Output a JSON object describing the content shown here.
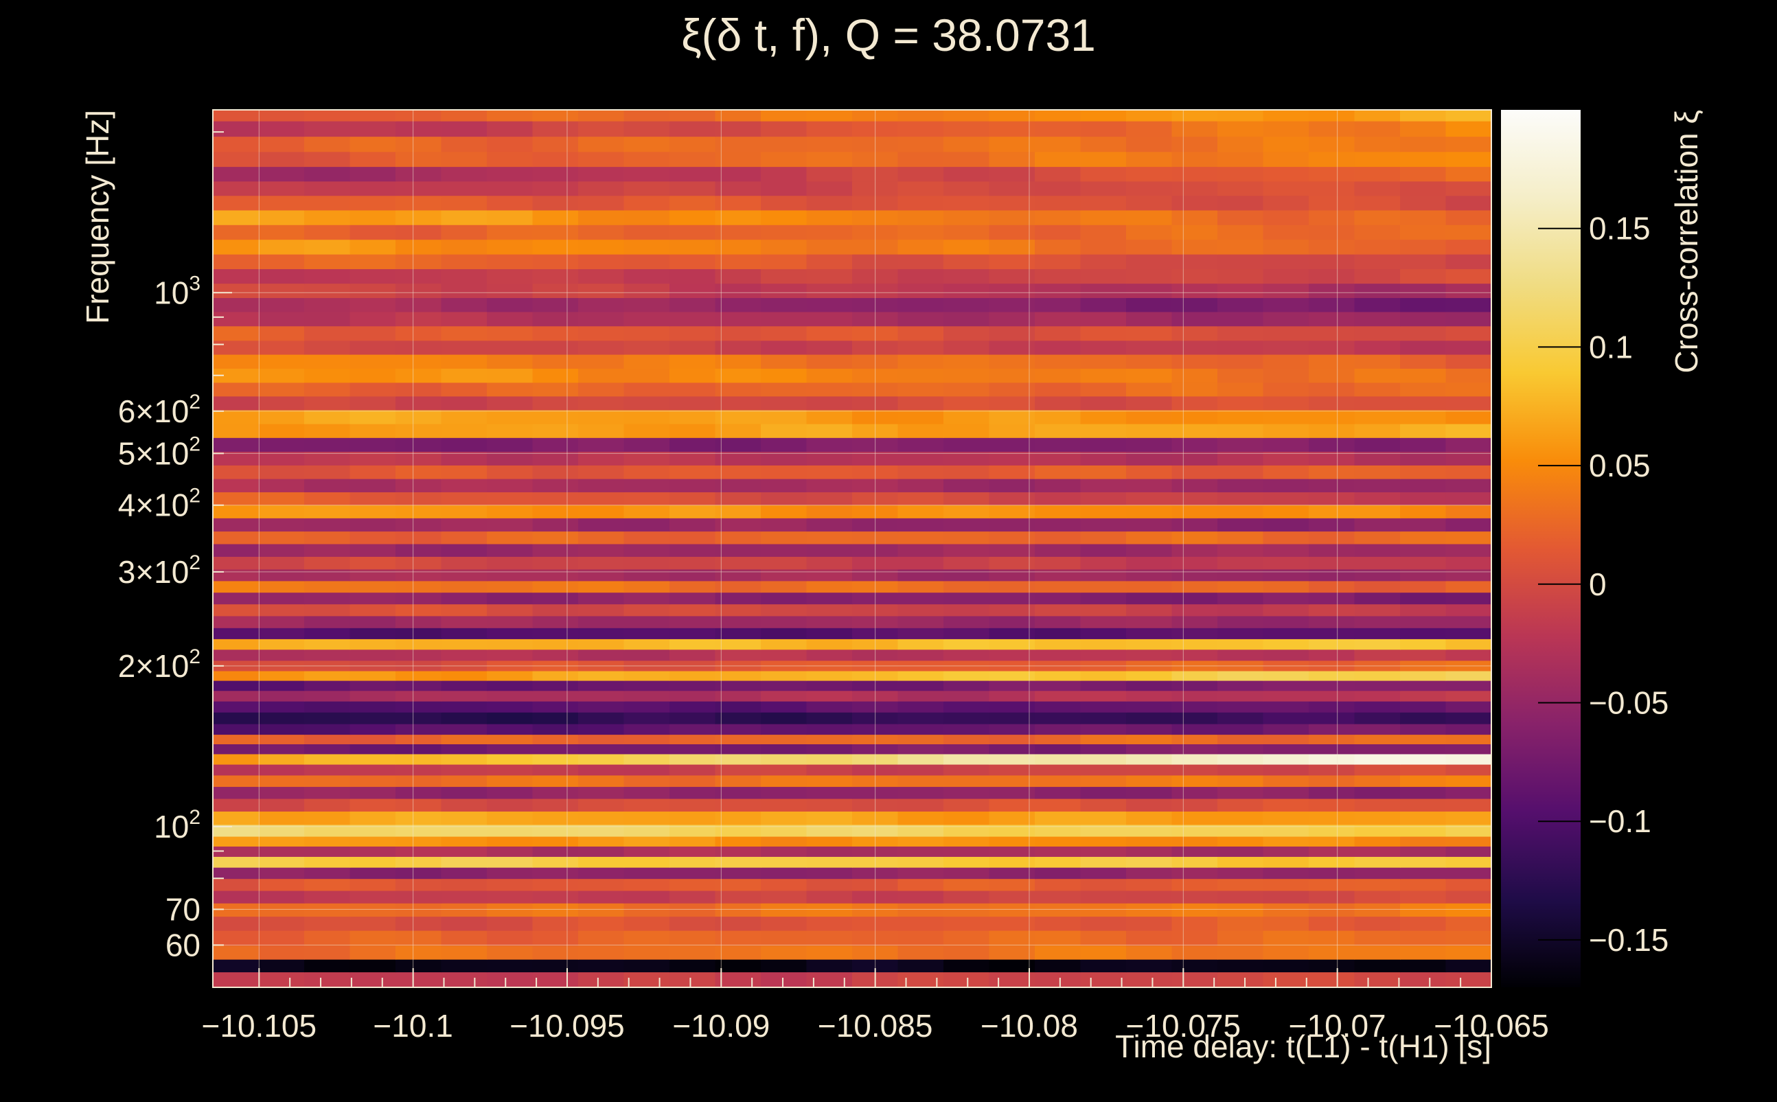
{
  "chart_data": {
    "type": "heatmap",
    "title": "ξ(δ t, f), Q = 38.0731",
    "xlabel": "Time delay: t(L1) - t(H1) [s]",
    "ylabel": "Frequency [Hz]",
    "colorbar_label": "Cross-correlation ξ",
    "x_range": [
      -10.1065,
      -10.065
    ],
    "y_range": [
      50,
      2200
    ],
    "y_scale": "log",
    "color_range": [
      -0.17,
      0.2
    ],
    "colormap": "inferno",
    "grid": true,
    "x_ticks": [
      {
        "value": -10.105,
        "label": "−10.105"
      },
      {
        "value": -10.1,
        "label": "−10.1"
      },
      {
        "value": -10.095,
        "label": "−10.095"
      },
      {
        "value": -10.09,
        "label": "−10.09"
      },
      {
        "value": -10.085,
        "label": "−10.085"
      },
      {
        "value": -10.08,
        "label": "−10.08"
      },
      {
        "value": -10.075,
        "label": "−10.075"
      },
      {
        "value": -10.07,
        "label": "−10.07"
      },
      {
        "value": -10.065,
        "label": "−10.065"
      }
    ],
    "y_ticks": [
      {
        "value": 60,
        "label": "60"
      },
      {
        "value": 70,
        "label": "70"
      },
      {
        "value": 100,
        "base": "10",
        "exp": "2"
      },
      {
        "value": 200,
        "base": "2×10",
        "exp": "2"
      },
      {
        "value": 300,
        "base": "3×10",
        "exp": "2"
      },
      {
        "value": 400,
        "base": "4×10",
        "exp": "2"
      },
      {
        "value": 500,
        "base": "5×10",
        "exp": "2"
      },
      {
        "value": 600,
        "base": "6×10",
        "exp": "2"
      },
      {
        "value": 1000,
        "base": "10",
        "exp": "3"
      }
    ],
    "colorbar_ticks": [
      {
        "value": 0.15,
        "label": "0.15"
      },
      {
        "value": 0.1,
        "label": "0.1"
      },
      {
        "value": 0.05,
        "label": "0.05"
      },
      {
        "value": 0,
        "label": "0"
      },
      {
        "value": -0.05,
        "label": "−0.05"
      },
      {
        "value": -0.1,
        "label": "−0.1"
      },
      {
        "value": -0.15,
        "label": "−0.15"
      }
    ],
    "bands": [
      {
        "f": 52,
        "v0": -0.02,
        "v1": 0.0
      },
      {
        "f": 55,
        "v0": -0.16,
        "v1": -0.16
      },
      {
        "f": 58,
        "v0": 0.03,
        "v1": 0.04
      },
      {
        "f": 62,
        "v0": 0.02,
        "v1": 0.03
      },
      {
        "f": 66,
        "v0": 0.0,
        "v1": 0.02
      },
      {
        "f": 70,
        "v0": 0.03,
        "v1": 0.04
      },
      {
        "f": 74,
        "v0": -0.02,
        "v1": 0.0
      },
      {
        "f": 78,
        "v0": 0.01,
        "v1": 0.02
      },
      {
        "f": 82,
        "v0": -0.06,
        "v1": -0.05
      },
      {
        "f": 86,
        "v0": 0.1,
        "v1": 0.09
      },
      {
        "f": 90,
        "v0": -0.03,
        "v1": -0.04
      },
      {
        "f": 94,
        "v0": 0.06,
        "v1": 0.05
      },
      {
        "f": 98,
        "v0": 0.12,
        "v1": 0.1
      },
      {
        "f": 104,
        "v0": 0.07,
        "v1": 0.06
      },
      {
        "f": 110,
        "v0": 0.0,
        "v1": 0.01
      },
      {
        "f": 116,
        "v0": -0.05,
        "v1": -0.06
      },
      {
        "f": 122,
        "v0": 0.03,
        "v1": 0.04
      },
      {
        "f": 128,
        "v0": -0.02,
        "v1": 0.0
      },
      {
        "f": 134,
        "v0": 0.06,
        "v1": 0.19
      },
      {
        "f": 140,
        "v0": -0.08,
        "v1": -0.06
      },
      {
        "f": 146,
        "v0": 0.02,
        "v1": 0.03
      },
      {
        "f": 152,
        "v0": -0.1,
        "v1": -0.07
      },
      {
        "f": 160,
        "v0": -0.13,
        "v1": -0.11
      },
      {
        "f": 168,
        "v0": -0.1,
        "v1": -0.08
      },
      {
        "f": 176,
        "v0": -0.04,
        "v1": -0.02
      },
      {
        "f": 184,
        "v0": -0.09,
        "v1": -0.06
      },
      {
        "f": 192,
        "v0": 0.05,
        "v1": 0.11
      },
      {
        "f": 200,
        "v0": 0.0,
        "v1": 0.03
      },
      {
        "f": 210,
        "v0": -0.03,
        "v1": -0.02
      },
      {
        "f": 220,
        "v0": 0.07,
        "v1": 0.09
      },
      {
        "f": 230,
        "v0": -0.1,
        "v1": -0.09
      },
      {
        "f": 242,
        "v0": -0.04,
        "v1": -0.05
      },
      {
        "f": 255,
        "v0": 0.01,
        "v1": -0.02
      },
      {
        "f": 268,
        "v0": -0.05,
        "v1": -0.07
      },
      {
        "f": 282,
        "v0": 0.04,
        "v1": 0.02
      },
      {
        "f": 296,
        "v0": -0.03,
        "v1": -0.05
      },
      {
        "f": 312,
        "v0": 0.0,
        "v1": -0.02
      },
      {
        "f": 330,
        "v0": -0.05,
        "v1": -0.04
      },
      {
        "f": 348,
        "v0": 0.02,
        "v1": 0.03
      },
      {
        "f": 368,
        "v0": -0.04,
        "v1": -0.06
      },
      {
        "f": 390,
        "v0": 0.06,
        "v1": 0.05
      },
      {
        "f": 412,
        "v0": 0.02,
        "v1": -0.02
      },
      {
        "f": 436,
        "v0": -0.03,
        "v1": -0.05
      },
      {
        "f": 462,
        "v0": 0.01,
        "v1": 0.02
      },
      {
        "f": 490,
        "v0": -0.02,
        "v1": -0.03
      },
      {
        "f": 520,
        "v0": -0.07,
        "v1": -0.06
      },
      {
        "f": 552,
        "v0": 0.06,
        "v1": 0.07
      },
      {
        "f": 586,
        "v0": 0.07,
        "v1": 0.05
      },
      {
        "f": 622,
        "v0": -0.01,
        "v1": 0.01
      },
      {
        "f": 660,
        "v0": 0.02,
        "v1": 0.03
      },
      {
        "f": 700,
        "v0": 0.06,
        "v1": 0.03
      },
      {
        "f": 745,
        "v0": 0.05,
        "v1": 0.02
      },
      {
        "f": 790,
        "v0": 0.0,
        "v1": -0.02
      },
      {
        "f": 840,
        "v0": 0.02,
        "v1": 0.0
      },
      {
        "f": 895,
        "v0": -0.02,
        "v1": -0.05
      },
      {
        "f": 950,
        "v0": -0.03,
        "v1": -0.08
      },
      {
        "f": 1010,
        "v0": 0.0,
        "v1": -0.04
      },
      {
        "f": 1075,
        "v0": -0.02,
        "v1": 0.0
      },
      {
        "f": 1145,
        "v0": 0.03,
        "v1": -0.01
      },
      {
        "f": 1220,
        "v0": 0.06,
        "v1": 0.02
      },
      {
        "f": 1300,
        "v0": 0.02,
        "v1": 0.03
      },
      {
        "f": 1385,
        "v0": 0.07,
        "v1": 0.02
      },
      {
        "f": 1475,
        "v0": 0.02,
        "v1": 0.0
      },
      {
        "f": 1570,
        "v0": -0.02,
        "v1": 0.01
      },
      {
        "f": 1670,
        "v0": -0.05,
        "v1": 0.03
      },
      {
        "f": 1780,
        "v0": 0.01,
        "v1": 0.05
      },
      {
        "f": 1900,
        "v0": 0.02,
        "v1": 0.04
      },
      {
        "f": 2030,
        "v0": -0.03,
        "v1": 0.05
      },
      {
        "f": 2170,
        "v0": 0.01,
        "v1": 0.07
      }
    ]
  }
}
